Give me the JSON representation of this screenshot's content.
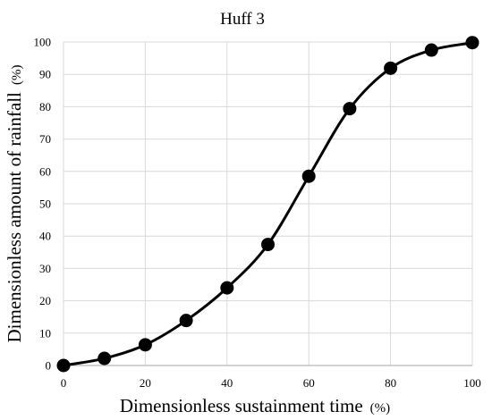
{
  "chart_data": {
    "type": "line",
    "title": "Huff 3",
    "xlabel": "Dimensionless sustainment time",
    "xlabel_unit": "(%)",
    "ylabel": "Dimensionless amount of rainfall",
    "ylabel_unit": "(%)",
    "xlim": [
      0,
      100
    ],
    "ylim": [
      0,
      100
    ],
    "xticks": [
      "0",
      "20",
      "40",
      "60",
      "80",
      "100"
    ],
    "yticks": [
      "0",
      "10",
      "20",
      "30",
      "40",
      "50",
      "60",
      "70",
      "80",
      "90",
      "100"
    ],
    "grid": true,
    "legend": "none",
    "marker": "filled-circle",
    "color": "#000000",
    "series": [
      {
        "x": [
          0,
          10,
          20,
          30,
          40,
          50,
          60,
          70,
          80,
          90,
          100
        ],
        "values": [
          0,
          2.2,
          6.4,
          13.9,
          24.0,
          37.4,
          58.5,
          79.4,
          91.9,
          97.5,
          99.8
        ]
      }
    ]
  }
}
